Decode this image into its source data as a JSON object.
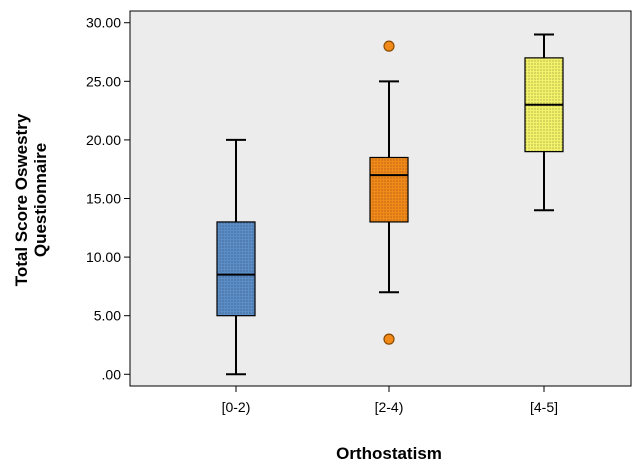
{
  "chart_data": {
    "type": "boxplot",
    "xlabel": "Orthostatism",
    "ylabel_lines": [
      "Total Score Oswestry",
      "Questionnaire"
    ],
    "ylim": [
      -1.0,
      31.0
    ],
    "yticks": [
      0,
      5,
      10,
      15,
      20,
      25,
      30
    ],
    "ytick_labels": [
      ".00",
      "5.00",
      "10.00",
      "15.00",
      "20.00",
      "25.00",
      "30.00"
    ],
    "grid": false,
    "plot_background": "#ececec",
    "categories": [
      "[0-2)",
      "[2-4)",
      "[4-5]"
    ],
    "boxes": [
      {
        "category": "[0-2)",
        "whisker_low": 0.0,
        "q1": 5.0,
        "median": 8.5,
        "q3": 13.0,
        "whisker_high": 20.0,
        "outliers": [],
        "color": "#5b8dc7"
      },
      {
        "category": "[2-4)",
        "whisker_low": 7.0,
        "q1": 13.0,
        "median": 17.0,
        "q3": 18.5,
        "whisker_high": 25.0,
        "outliers": [
          3.0,
          28.0
        ],
        "color": "#f28a1a"
      },
      {
        "category": "[4-5]",
        "whisker_low": 14.0,
        "q1": 19.0,
        "median": 23.0,
        "q3": 27.0,
        "whisker_high": 29.0,
        "outliers": [],
        "color": "#f2f26a"
      }
    ]
  }
}
